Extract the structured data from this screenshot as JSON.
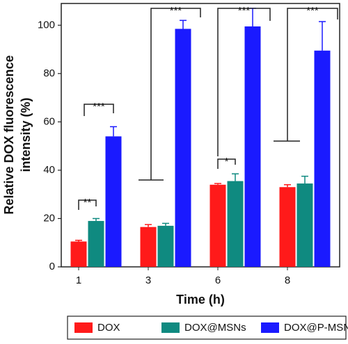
{
  "chart_data": {
    "type": "bar",
    "y_label": "Relative DOX fluorescence intensity (%)",
    "x_label": "Time (h)",
    "categories": [
      "1",
      "3",
      "6",
      "8"
    ],
    "series": [
      {
        "name": "DOX",
        "color": "#ff1a1a",
        "values": [
          10.5,
          16.5,
          34,
          33
        ],
        "errors": [
          0.5,
          1,
          0.5,
          1
        ]
      },
      {
        "name": "DOX@MSNs",
        "color": "#0f8a80",
        "values": [
          19,
          17,
          35.5,
          34.5
        ],
        "errors": [
          1,
          1,
          3,
          3
        ]
      },
      {
        "name": "DOX@P-MSNs",
        "color": "#1a1aff",
        "values": [
          54,
          98.5,
          99.5,
          89.5
        ],
        "errors": [
          4,
          3.5,
          7.5,
          12
        ]
      }
    ],
    "annotations": [
      "**",
      "***",
      "***",
      "*",
      "***",
      "***"
    ],
    "ylim": [
      0,
      109
    ],
    "yticks": [
      0,
      20,
      40,
      60,
      80,
      100
    ]
  }
}
